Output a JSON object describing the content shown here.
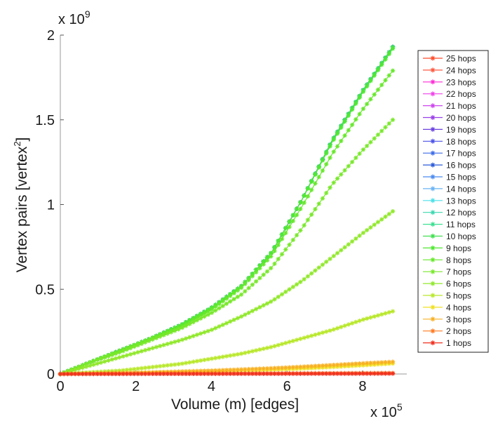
{
  "chart_data": {
    "type": "line",
    "title": "",
    "xlabel": "Volume (m) [edges]",
    "ylabel_main": "Vertex pairs [vertex",
    "ylabel_sup": "2",
    "ylabel_close": "]",
    "x_exponent": {
      "base": "x 10",
      "power": "5"
    },
    "y_exponent": {
      "base": "x 10",
      "power": "9"
    },
    "xlim": [
      0,
      9
    ],
    "ylim": [
      0,
      2
    ],
    "x_ticks": [
      0,
      2,
      4,
      6,
      8
    ],
    "x_tick_labels": [
      "0",
      "2",
      "4",
      "6",
      "8"
    ],
    "y_ticks": [
      0,
      0.5,
      1,
      1.5,
      2
    ],
    "y_tick_labels": [
      "0",
      "0.5",
      "1",
      "1.5",
      "2"
    ],
    "x_max": 8.8,
    "x_samples": [
      0,
      0.8,
      1.6,
      2.4,
      3.2,
      4.0,
      4.8,
      5.6,
      6.4,
      7.2,
      8.0,
      8.8
    ],
    "legend_position": "outside-right",
    "grid": false,
    "series": [
      {
        "name": "25 hops",
        "color": "#ff4a2a",
        "values": [
          0,
          0.07,
          0.14,
          0.21,
          0.29,
          0.39,
          0.52,
          0.72,
          1.03,
          1.38,
          1.67,
          1.93
        ]
      },
      {
        "name": "24 hops",
        "color": "#ff5840",
        "values": [
          0,
          0.07,
          0.14,
          0.21,
          0.29,
          0.39,
          0.52,
          0.72,
          1.03,
          1.38,
          1.67,
          1.93
        ]
      },
      {
        "name": "23 hops",
        "color": "#ff2ad4",
        "values": [
          0,
          0.07,
          0.14,
          0.21,
          0.29,
          0.39,
          0.52,
          0.72,
          1.03,
          1.38,
          1.67,
          1.93
        ]
      },
      {
        "name": "22 hops",
        "color": "#f040e8",
        "values": [
          0,
          0.07,
          0.14,
          0.21,
          0.29,
          0.39,
          0.52,
          0.72,
          1.03,
          1.38,
          1.67,
          1.93
        ]
      },
      {
        "name": "21 hops",
        "color": "#cc44ee",
        "values": [
          0,
          0.07,
          0.14,
          0.21,
          0.29,
          0.39,
          0.52,
          0.72,
          1.03,
          1.38,
          1.67,
          1.93
        ]
      },
      {
        "name": "20 hops",
        "color": "#9a40e8",
        "values": [
          0,
          0.07,
          0.14,
          0.21,
          0.29,
          0.39,
          0.52,
          0.72,
          1.03,
          1.38,
          1.67,
          1.93
        ]
      },
      {
        "name": "19 hops",
        "color": "#6a40e0",
        "values": [
          0,
          0.07,
          0.14,
          0.21,
          0.29,
          0.39,
          0.52,
          0.72,
          1.03,
          1.38,
          1.67,
          1.93
        ]
      },
      {
        "name": "18 hops",
        "color": "#4a50e8",
        "values": [
          0,
          0.07,
          0.14,
          0.21,
          0.29,
          0.39,
          0.52,
          0.72,
          1.03,
          1.38,
          1.67,
          1.93
        ]
      },
      {
        "name": "17 hops",
        "color": "#3a6ae8",
        "values": [
          0,
          0.07,
          0.14,
          0.21,
          0.29,
          0.39,
          0.52,
          0.72,
          1.03,
          1.38,
          1.67,
          1.93
        ]
      },
      {
        "name": "16 hops",
        "color": "#2a5ad8",
        "values": [
          0,
          0.07,
          0.14,
          0.21,
          0.29,
          0.39,
          0.52,
          0.72,
          1.03,
          1.38,
          1.67,
          1.93
        ]
      },
      {
        "name": "15 hops",
        "color": "#4a8af0",
        "values": [
          0,
          0.07,
          0.14,
          0.21,
          0.29,
          0.39,
          0.52,
          0.72,
          1.03,
          1.38,
          1.67,
          1.93
        ]
      },
      {
        "name": "14 hops",
        "color": "#6ab4f4",
        "values": [
          0,
          0.07,
          0.14,
          0.21,
          0.29,
          0.39,
          0.52,
          0.72,
          1.03,
          1.38,
          1.67,
          1.93
        ]
      },
      {
        "name": "13 hops",
        "color": "#4ae0e8",
        "values": [
          0,
          0.07,
          0.14,
          0.21,
          0.29,
          0.39,
          0.52,
          0.72,
          1.03,
          1.38,
          1.67,
          1.93
        ]
      },
      {
        "name": "12 hops",
        "color": "#3ad8b0",
        "values": [
          0,
          0.07,
          0.14,
          0.21,
          0.29,
          0.39,
          0.52,
          0.72,
          1.03,
          1.38,
          1.67,
          1.93
        ]
      },
      {
        "name": "11 hops",
        "color": "#3ae090",
        "values": [
          0,
          0.07,
          0.14,
          0.21,
          0.29,
          0.39,
          0.52,
          0.72,
          1.03,
          1.38,
          1.67,
          1.93
        ]
      },
      {
        "name": "10 hops",
        "color": "#40e050",
        "values": [
          0,
          0.07,
          0.14,
          0.21,
          0.29,
          0.39,
          0.52,
          0.72,
          1.03,
          1.38,
          1.67,
          1.93
        ]
      },
      {
        "name": "9 hops",
        "color": "#50e830",
        "values": [
          0,
          0.07,
          0.14,
          0.21,
          0.29,
          0.39,
          0.52,
          0.72,
          1.03,
          1.37,
          1.66,
          1.92
        ]
      },
      {
        "name": "8 hops",
        "color": "#66e82a",
        "values": [
          0,
          0.07,
          0.14,
          0.21,
          0.28,
          0.38,
          0.51,
          0.7,
          0.99,
          1.3,
          1.56,
          1.79
        ]
      },
      {
        "name": "7 hops",
        "color": "#78e82a",
        "values": [
          0,
          0.07,
          0.13,
          0.2,
          0.27,
          0.36,
          0.47,
          0.63,
          0.86,
          1.12,
          1.32,
          1.5
        ]
      },
      {
        "name": "6 hops",
        "color": "#90e82a",
        "values": [
          0,
          0.05,
          0.1,
          0.15,
          0.2,
          0.26,
          0.34,
          0.43,
          0.55,
          0.69,
          0.83,
          0.96
        ]
      },
      {
        "name": "5 hops",
        "color": "#b8e82a",
        "values": [
          0,
          0.01,
          0.02,
          0.04,
          0.06,
          0.09,
          0.12,
          0.16,
          0.21,
          0.26,
          0.32,
          0.37
        ]
      },
      {
        "name": "4 hops",
        "color": "#f0e020",
        "values": [
          0,
          0.002,
          0.004,
          0.007,
          0.01,
          0.014,
          0.019,
          0.025,
          0.032,
          0.041,
          0.051,
          0.062
        ]
      },
      {
        "name": "3 hops",
        "color": "#f8b020",
        "values": [
          0,
          0.003,
          0.006,
          0.01,
          0.015,
          0.02,
          0.027,
          0.034,
          0.043,
          0.053,
          0.063,
          0.072
        ]
      },
      {
        "name": "2 hops",
        "color": "#ff7a20",
        "values": [
          0,
          0.0005,
          0.001,
          0.0015,
          0.002,
          0.0025,
          0.003,
          0.0035,
          0.004,
          0.0045,
          0.005,
          0.0055
        ]
      },
      {
        "name": "1 hops",
        "color": "#f03020",
        "values": [
          0,
          0.0002,
          0.0004,
          0.0006,
          0.0008,
          0.001,
          0.0012,
          0.0014,
          0.0016,
          0.0018,
          0.002,
          0.0022
        ]
      }
    ]
  }
}
